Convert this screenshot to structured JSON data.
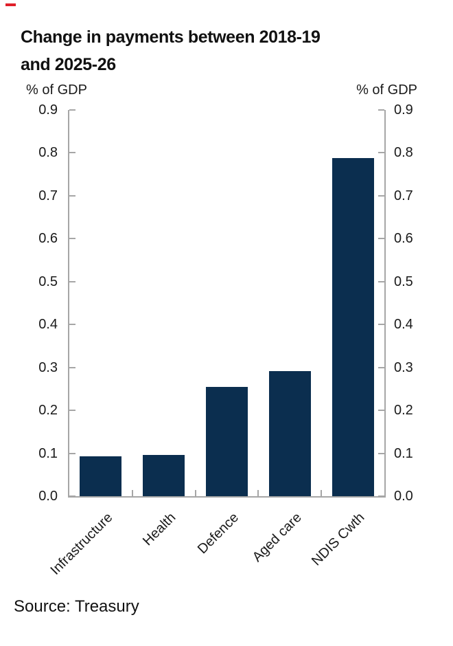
{
  "page": {
    "background_color": "#ffffff",
    "accent_dash_color": "#e01f29"
  },
  "header": {
    "title_line1": "Change in payments between 2018-19",
    "title_line2": "and 2025-26"
  },
  "axes": {
    "left_unit_label": "% of GDP",
    "right_unit_label": "% of GDP",
    "axis_color": "#a6a6a6"
  },
  "footer": {
    "source_text": "Source: Treasury"
  },
  "chart_data": {
    "type": "bar",
    "title": "Change in payments between 2018-19 and 2025-26",
    "categories": [
      "Infrastructure",
      "Health",
      "Defence",
      "Aged care",
      "NDIS Cwth"
    ],
    "values": [
      0.093,
      0.096,
      0.254,
      0.291,
      0.788
    ],
    "xlabel": "",
    "ylabel_left": "% of GDP",
    "ylabel_right": "% of GDP",
    "ylim": [
      0.0,
      0.9
    ],
    "ytick_step": 0.1,
    "ytick_labels": [
      "0.0",
      "0.1",
      "0.2",
      "0.3",
      "0.4",
      "0.5",
      "0.6",
      "0.7",
      "0.8",
      "0.9"
    ],
    "grid": false,
    "legend": false,
    "dual_axis_labels": true,
    "x_labels_rotation_deg": 45,
    "bar_color": "#0b2e4f"
  }
}
